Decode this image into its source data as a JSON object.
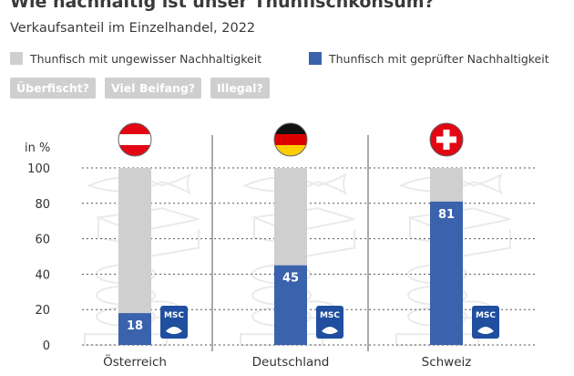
{
  "header": {
    "title": "Wie nachhaltig ist unser Thunfischkonsum?",
    "subtitle": "Verkaufsanteil im Einzelhandel, 2022"
  },
  "legend": [
    {
      "label": "Thunfisch mit ungewisser Nachhaltigkeit",
      "color": "#cfcfcf"
    },
    {
      "label": "Thunfisch mit geprüfter Nachhaltigkeit",
      "color": "#3a62ad"
    }
  ],
  "tags": [
    "Überfischt?",
    "Viel Beifang?",
    "Illegal?"
  ],
  "badge_text": "MSC",
  "colors": {
    "uncertain": "#cfcfcf",
    "certified": "#3a62ad",
    "text": "#333333",
    "divider": "#555555"
  },
  "chart_data": {
    "type": "bar",
    "title": "Verkaufsanteil im Einzelhandel, 2022",
    "ylabel": "in %",
    "ylim": [
      0,
      100
    ],
    "yticks": [
      0,
      20,
      40,
      60,
      80,
      100
    ],
    "categories": [
      "Österreich",
      "Deutschland",
      "Schweiz"
    ],
    "flags": [
      "austria-flag",
      "germany-flag",
      "switzerland-flag"
    ],
    "series": [
      {
        "name": "Thunfisch mit geprüfter Nachhaltigkeit",
        "values": [
          18,
          45,
          81
        ]
      },
      {
        "name": "Thunfisch mit ungewisser Nachhaltigkeit",
        "values": [
          82,
          55,
          19
        ]
      }
    ],
    "stacked": true,
    "grid": false
  }
}
